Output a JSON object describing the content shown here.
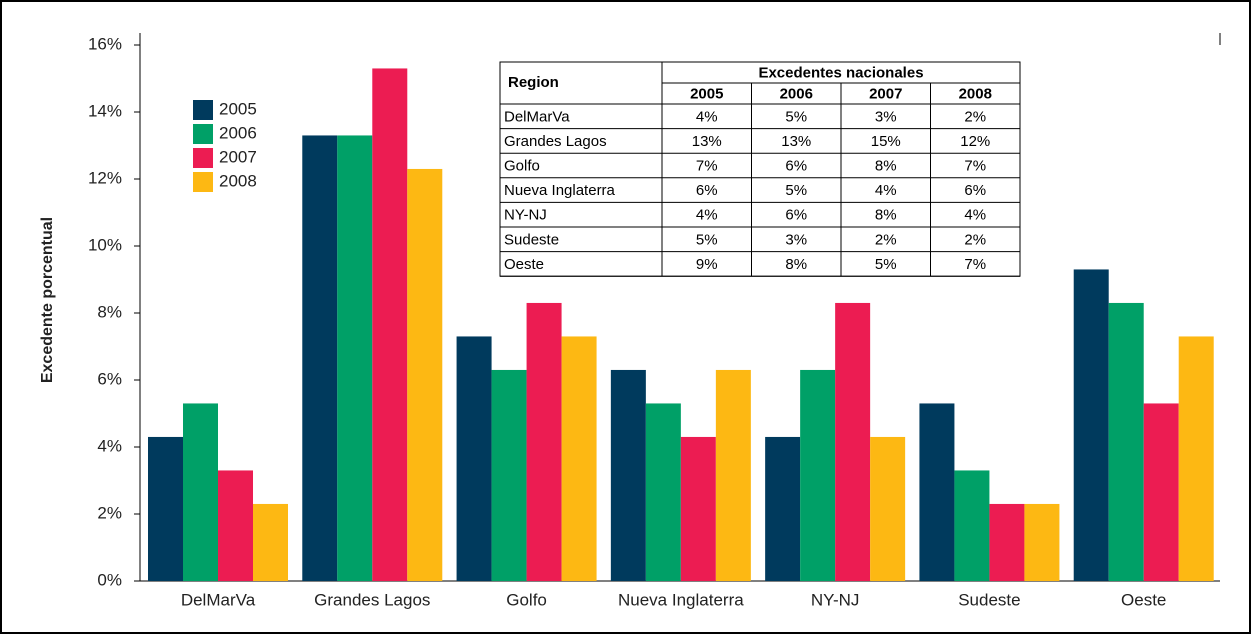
{
  "chart_data": {
    "type": "bar",
    "y_label": "Excedente porcentual",
    "categories": [
      "DelMarVa",
      "Grandes Lagos",
      "Golfo",
      "Nueva Inglaterra",
      "NY-NJ",
      "Sudeste",
      "Oeste"
    ],
    "series": [
      {
        "name": "2005",
        "color": "#003a5d",
        "values": [
          4.3,
          13.3,
          7.3,
          6.3,
          4.3,
          5.3,
          9.3
        ]
      },
      {
        "name": "2006",
        "color": "#00a067",
        "values": [
          5.3,
          13.3,
          6.3,
          5.3,
          6.3,
          3.3,
          8.3
        ]
      },
      {
        "name": "2007",
        "color": "#ec1c52",
        "values": [
          3.3,
          15.3,
          8.3,
          4.3,
          8.3,
          2.3,
          5.3
        ]
      },
      {
        "name": "2008",
        "color": "#fdb813",
        "values": [
          2.3,
          12.3,
          7.3,
          6.3,
          4.3,
          2.3,
          7.3
        ]
      }
    ],
    "ylim": [
      0,
      16
    ],
    "yticks": [
      {
        "value": 0,
        "label": "0%"
      },
      {
        "value": 2,
        "label": "2%"
      },
      {
        "value": 4,
        "label": "4%"
      },
      {
        "value": 6,
        "label": "6%"
      },
      {
        "value": 8,
        "label": "8%"
      },
      {
        "value": 10,
        "label": "10%"
      },
      {
        "value": 12,
        "label": "12%"
      },
      {
        "value": 14,
        "label": "14%"
      },
      {
        "value": 16,
        "label": "16%"
      }
    ],
    "grid": false,
    "legend": "upper left"
  },
  "table": {
    "region_header": "Region",
    "group_header": "Excedentes nacionales",
    "years": [
      "2005",
      "2006",
      "2007",
      "2008"
    ],
    "rows": [
      [
        "DelMarVa",
        "4%",
        "5%",
        "3%",
        "2%"
      ],
      [
        "Grandes Lagos",
        "13%",
        "13%",
        "15%",
        "12%"
      ],
      [
        "Golfo",
        "7%",
        "6%",
        "8%",
        "7%"
      ],
      [
        "Nueva Inglaterra",
        "6%",
        "5%",
        "4%",
        "6%"
      ],
      [
        "NY-NJ",
        "4%",
        "6%",
        "8%",
        "4%"
      ],
      [
        "Sudeste",
        "5%",
        "3%",
        "2%",
        "2%"
      ],
      [
        "Oeste",
        "9%",
        "8%",
        "5%",
        "7%"
      ]
    ]
  }
}
